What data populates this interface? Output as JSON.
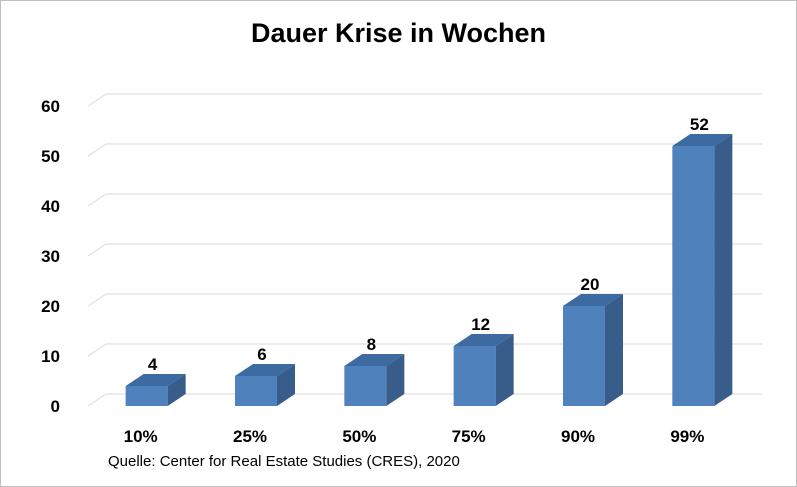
{
  "chart_data": {
    "type": "bar",
    "title": "Dauer Krise in Wochen",
    "categories": [
      "10%",
      "25%",
      "50%",
      "75%",
      "90%",
      "99%"
    ],
    "values": [
      4,
      6,
      8,
      12,
      20,
      52
    ],
    "ylim": [
      0,
      60
    ],
    "yticks": [
      0,
      10,
      20,
      30,
      40,
      50,
      60
    ],
    "grid": true,
    "bar_color": "#4f81bd",
    "bar_side_color": "#385d8a",
    "bar_top_color": "#3d6aa0",
    "legend": "none"
  },
  "source": "Quelle: Center for Real Estate Studies (CRES), 2020"
}
